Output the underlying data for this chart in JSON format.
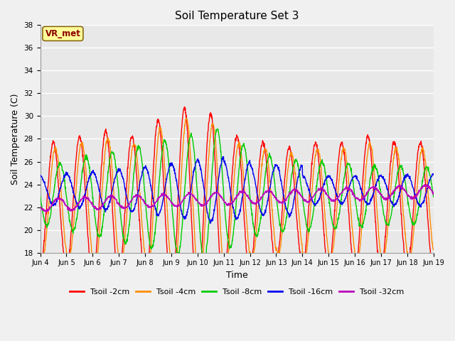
{
  "title": "Soil Temperature Set 3",
  "xlabel": "Time",
  "ylabel": "Soil Temperature (C)",
  "ylim": [
    18,
    38
  ],
  "yticks": [
    18,
    20,
    22,
    24,
    26,
    28,
    30,
    32,
    34,
    36,
    38
  ],
  "x_labels": [
    "Jun 4",
    "Jun 5",
    "Jun 6",
    "Jun 7",
    "Jun 8",
    "Jun 9",
    "Jun 10",
    "Jun 11",
    "Jun 12",
    "Jun 13",
    "Jun 14",
    "Jun 15",
    "Jun 16",
    "Jun 17",
    "Jun 18",
    "Jun 19"
  ],
  "annotation_text": "VR_met",
  "annotation_color": "#8B0000",
  "annotation_bg": "#FFFF99",
  "plot_bg": "#E8E8E8",
  "fig_bg": "#F0F0F0",
  "series": [
    {
      "label": "Tsoil -2cm",
      "color": "#FF0000"
    },
    {
      "label": "Tsoil -4cm",
      "color": "#FF8C00"
    },
    {
      "label": "Tsoil -8cm",
      "color": "#00CC00"
    },
    {
      "label": "Tsoil -16cm",
      "color": "#0000EE"
    },
    {
      "label": "Tsoil -32cm",
      "color": "#BB00BB"
    }
  ]
}
